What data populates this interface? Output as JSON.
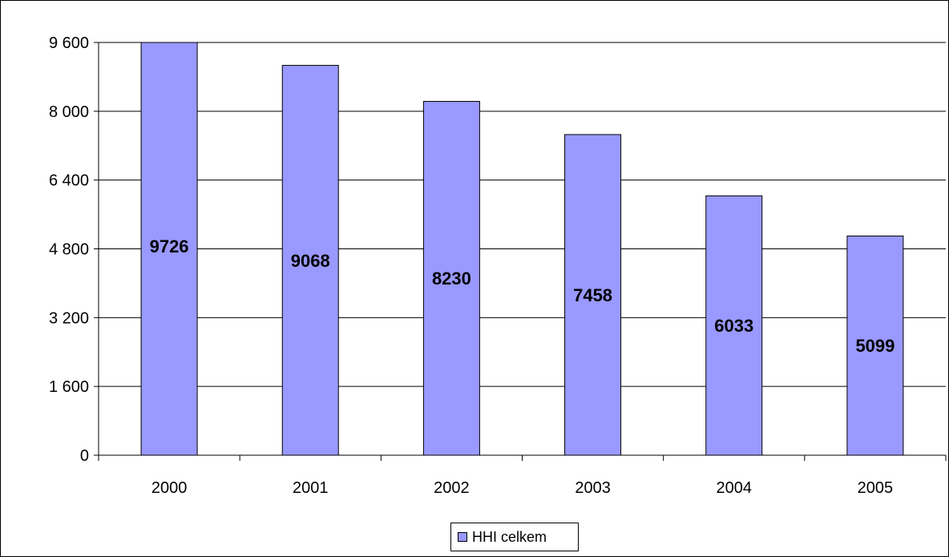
{
  "chart_data": {
    "type": "bar",
    "categories": [
      "2000",
      "2001",
      "2002",
      "2003",
      "2004",
      "2005"
    ],
    "series": [
      {
        "name": "HHI celkem",
        "values": [
          9726,
          9068,
          8230,
          7458,
          6033,
          5099
        ],
        "data_labels": [
          "9726",
          "9068",
          "8230",
          "7458",
          "6033",
          "5099"
        ]
      }
    ],
    "y_ticks": [
      0,
      1600,
      3200,
      4800,
      6400,
      8000,
      9600
    ],
    "y_tick_labels": [
      "0",
      "1 600",
      "3 200",
      "4 800",
      "6 400",
      "8 000",
      "9 600"
    ],
    "ylim": [
      0,
      9600
    ],
    "grid": true,
    "legend_position": "bottom",
    "title": "",
    "xlabel": "",
    "ylabel": ""
  },
  "colors": {
    "bar_fill": "#9999ff",
    "bar_stroke": "#000000",
    "grid": "#000000",
    "axis": "#000000"
  }
}
